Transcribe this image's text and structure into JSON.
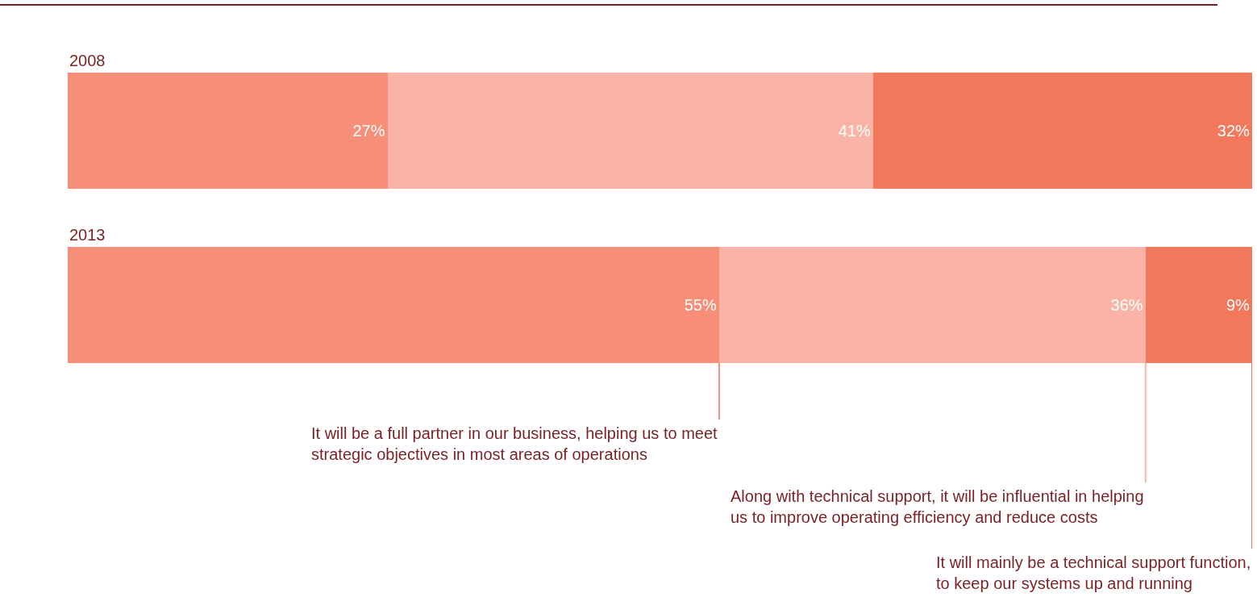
{
  "chart_data": {
    "type": "bar",
    "orientation": "horizontal",
    "stacked": true,
    "legend": false,
    "categories": [
      "2008",
      "2013"
    ],
    "series": [
      {
        "name": "It will be a full partner in our business, helping us to meet\nstrategic objectives in most areas of operations",
        "color": "#f78e78",
        "values": [
          27,
          55
        ],
        "value_labels": [
          "27%",
          "55%"
        ]
      },
      {
        "name": "Along with technical support, it will be influential in helping\nus to improve operating efficiency and reduce costs",
        "color": "#fbb3a6",
        "values": [
          41,
          36
        ],
        "value_labels": [
          "41%",
          "36%"
        ]
      },
      {
        "name": "It will mainly be a technical support function,\nto keep our systems up and running",
        "color": "#f2775b",
        "values": [
          32,
          9
        ],
        "value_labels": [
          "32%",
          "9%"
        ]
      }
    ]
  }
}
